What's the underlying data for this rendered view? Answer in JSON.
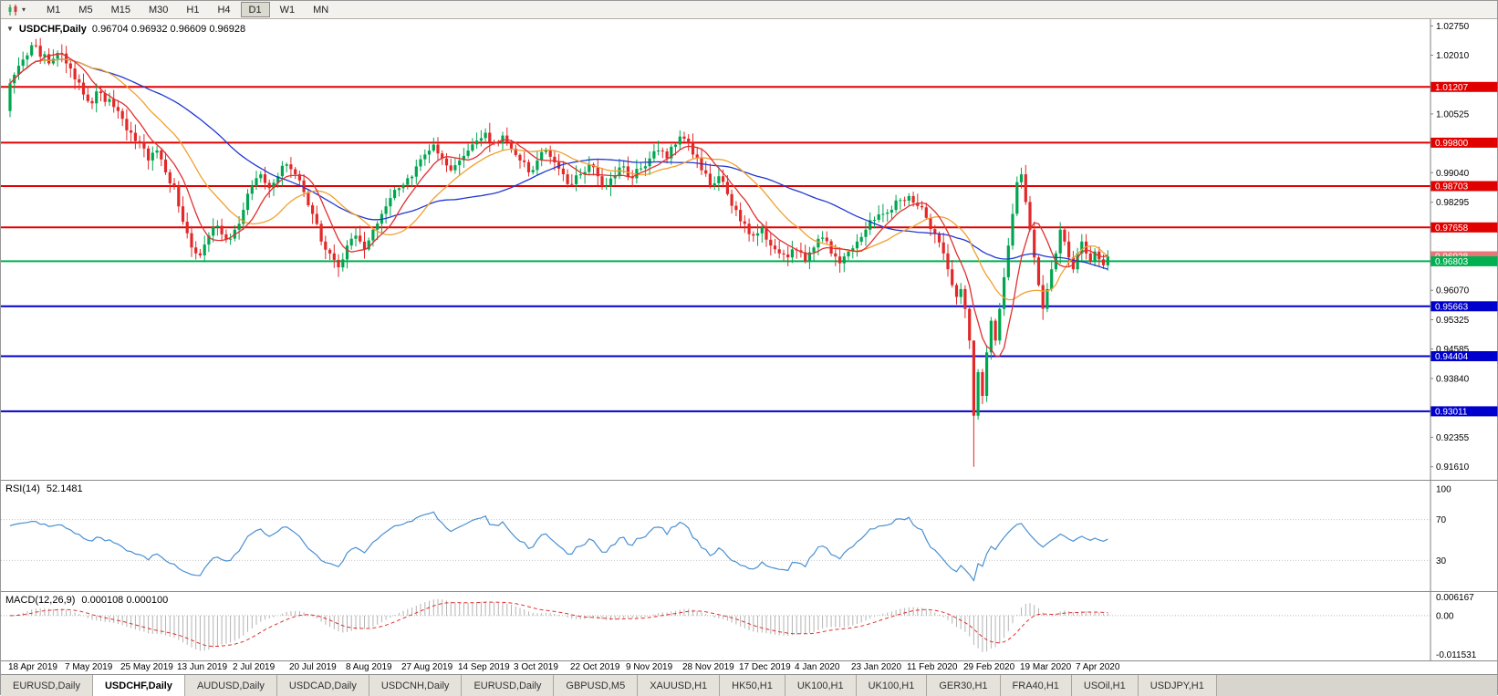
{
  "toolbar": {
    "timeframes": [
      "M1",
      "M5",
      "M15",
      "M30",
      "H1",
      "H4",
      "D1",
      "W1",
      "MN"
    ],
    "active_timeframe": "D1"
  },
  "chart": {
    "title": "USDCHF,Daily",
    "ohlc": "0.96704 0.96932 0.96609 0.96928"
  },
  "price_axis": {
    "ticks": [
      "1.02750",
      "1.02010",
      "1.01265",
      "1.00525",
      "0.99780",
      "0.99040",
      "0.98295",
      "0.97555",
      "0.96810",
      "0.96070",
      "0.95325",
      "0.94585",
      "0.93840",
      "0.93100",
      "0.92355",
      "0.91610"
    ]
  },
  "levels": [
    {
      "text": "1.01207",
      "price": 1.01207,
      "color": "#e00000",
      "kind": "resistance",
      "line": true
    },
    {
      "text": "0.99800",
      "price": 0.998,
      "color": "#e00000",
      "kind": "resistance",
      "line": true
    },
    {
      "text": "0.98703",
      "price": 0.98703,
      "color": "#e00000",
      "kind": "resistance",
      "line": true
    },
    {
      "text": "0.97658",
      "price": 0.97658,
      "color": "#e00000",
      "kind": "resistance",
      "line": true
    },
    {
      "text": "0.96928",
      "price": 0.96928,
      "color": "#e87878",
      "kind": "current-price",
      "line": false
    },
    {
      "text": "0.96803",
      "price": 0.96803,
      "color": "#00b050",
      "kind": "pivot",
      "line": true
    },
    {
      "text": "0.95663",
      "price": 0.95663,
      "color": "#0000cc",
      "kind": "support",
      "line": true
    },
    {
      "text": "0.94404",
      "price": 0.94404,
      "color": "#0000cc",
      "kind": "support",
      "line": true
    },
    {
      "text": "0.93011",
      "price": 0.93011,
      "color": "#0000cc",
      "kind": "support",
      "line": true
    }
  ],
  "rsi": {
    "label": "RSI(14)",
    "value": "52.1481",
    "axis_labels": [
      "100",
      "70",
      "30"
    ]
  },
  "macd": {
    "label": "MACD(12,26,9)",
    "values": "0.000108 0.000100",
    "axis_labels": [
      "0.006167",
      "0.00",
      "-0.011531"
    ]
  },
  "date_axis": {
    "labels": [
      "18 Apr 2019",
      "7 May 2019",
      "25 May 2019",
      "13 Jun 2019",
      "2 Jul 2019",
      "20 Jul 2019",
      "8 Aug 2019",
      "27 Aug 2019",
      "14 Sep 2019",
      "3 Oct 2019",
      "22 Oct 2019",
      "9 Nov 2019",
      "28 Nov 2019",
      "17 Dec 2019",
      "4 Jan 2020",
      "23 Jan 2020",
      "11 Feb 2020",
      "29 Feb 2020",
      "19 Mar 2020",
      "7 Apr 2020"
    ]
  },
  "tabs": [
    {
      "label": "EURUSD,Daily",
      "active": false
    },
    {
      "label": "USDCHF,Daily",
      "active": true
    },
    {
      "label": "AUDUSD,Daily",
      "active": false
    },
    {
      "label": "USDCAD,Daily",
      "active": false
    },
    {
      "label": "USDCNH,Daily",
      "active": false
    },
    {
      "label": "EURUSD,Daily",
      "active": false
    },
    {
      "label": "GBPUSD,M5",
      "active": false
    },
    {
      "label": "XAUUSD,H1",
      "active": false
    },
    {
      "label": "HK50,H1",
      "active": false
    },
    {
      "label": "UK100,H1",
      "active": false
    },
    {
      "label": "UK100,H1",
      "active": false
    },
    {
      "label": "GER30,H1",
      "active": false
    },
    {
      "label": "FRA40,H1",
      "active": false
    },
    {
      "label": "USOil,H1",
      "active": false
    },
    {
      "label": "USDJPY,H1",
      "active": false
    }
  ],
  "chart_data": {
    "type": "candlestick",
    "symbol": "USDCHF",
    "timeframe": "Daily",
    "current_ohlc": {
      "open": 0.96704,
      "high": 0.96932,
      "low": 0.96609,
      "close": 0.96928
    },
    "price_range": {
      "min": 0.9128,
      "max": 1.0292
    },
    "candle_count": 255,
    "first_open": 1.006,
    "jitter": 0.0026,
    "wick_base": 0.0004,
    "wick_rand": 0.0022,
    "seed": 20200418,
    "up_color": "#00a64f",
    "down_color": "#e22828",
    "close_anchors": [
      [
        0,
        1.013
      ],
      [
        3,
        1.019
      ],
      [
        6,
        1.0225
      ],
      [
        9,
        1.018
      ],
      [
        12,
        1.0205
      ],
      [
        15,
        1.014
      ],
      [
        18,
        1.0085
      ],
      [
        21,
        1.0105
      ],
      [
        24,
        1.007
      ],
      [
        26,
        1.004
      ],
      [
        28,
        1.0005
      ],
      [
        30,
        0.998
      ],
      [
        32,
        0.9935
      ],
      [
        34,
        0.996
      ],
      [
        36,
        0.9905
      ],
      [
        38,
        0.987
      ],
      [
        40,
        0.978
      ],
      [
        42,
        0.9715
      ],
      [
        44,
        0.9695
      ],
      [
        46,
        0.9745
      ],
      [
        48,
        0.977
      ],
      [
        50,
        0.9735
      ],
      [
        52,
        0.976
      ],
      [
        54,
        0.981
      ],
      [
        56,
        0.987
      ],
      [
        58,
        0.99
      ],
      [
        60,
        0.9865
      ],
      [
        62,
        0.9895
      ],
      [
        64,
        0.9925
      ],
      [
        66,
        0.99
      ],
      [
        68,
        0.9855
      ],
      [
        70,
        0.98
      ],
      [
        72,
        0.973
      ],
      [
        74,
        0.97
      ],
      [
        76,
        0.9665
      ],
      [
        78,
        0.972
      ],
      [
        80,
        0.9745
      ],
      [
        82,
        0.971
      ],
      [
        84,
        0.976
      ],
      [
        86,
        0.98
      ],
      [
        88,
        0.984
      ],
      [
        90,
        0.9865
      ],
      [
        92,
        0.989
      ],
      [
        94,
        0.992
      ],
      [
        96,
        0.995
      ],
      [
        98,
        0.9975
      ],
      [
        100,
        0.994
      ],
      [
        102,
        0.991
      ],
      [
        104,
        0.9935
      ],
      [
        106,
        0.996
      ],
      [
        108,
        0.9985
      ],
      [
        110,
        1.0005
      ],
      [
        112,
        0.998
      ],
      [
        114,
        0.9998
      ],
      [
        116,
        0.9965
      ],
      [
        118,
        0.9935
      ],
      [
        120,
        0.9905
      ],
      [
        122,
        0.9935
      ],
      [
        124,
        0.996
      ],
      [
        126,
        0.993
      ],
      [
        128,
        0.99
      ],
      [
        130,
        0.9875
      ],
      [
        132,
        0.99
      ],
      [
        134,
        0.9925
      ],
      [
        136,
        0.9895
      ],
      [
        138,
        0.987
      ],
      [
        140,
        0.9895
      ],
      [
        142,
        0.992
      ],
      [
        144,
        0.989
      ],
      [
        146,
        0.9915
      ],
      [
        148,
        0.994
      ],
      [
        150,
        0.996
      ],
      [
        152,
        0.994
      ],
      [
        154,
        0.9975
      ],
      [
        156,
        0.999
      ],
      [
        158,
        0.995
      ],
      [
        160,
        0.991
      ],
      [
        162,
        0.987
      ],
      [
        164,
        0.9895
      ],
      [
        166,
        0.985
      ],
      [
        168,
        0.981
      ],
      [
        170,
        0.9775
      ],
      [
        172,
        0.9745
      ],
      [
        174,
        0.9765
      ],
      [
        176,
        0.972
      ],
      [
        178,
        0.97
      ],
      [
        180,
        0.969
      ],
      [
        182,
        0.9708
      ],
      [
        184,
        0.968
      ],
      [
        186,
        0.9715
      ],
      [
        188,
        0.974
      ],
      [
        190,
        0.97
      ],
      [
        192,
        0.9675
      ],
      [
        194,
        0.9705
      ],
      [
        196,
        0.973
      ],
      [
        198,
        0.976
      ],
      [
        200,
        0.9785
      ],
      [
        202,
        0.98
      ],
      [
        204,
        0.981
      ],
      [
        206,
        0.9835
      ],
      [
        208,
        0.9845
      ],
      [
        210,
        0.982
      ],
      [
        212,
        0.979
      ],
      [
        214,
        0.975
      ],
      [
        216,
        0.97
      ],
      [
        217,
        0.966
      ],
      [
        218,
        0.962
      ],
      [
        219,
        0.959
      ],
      [
        220,
        0.961
      ],
      [
        221,
        0.956
      ],
      [
        222,
        0.948
      ],
      [
        223,
        0.929
      ],
      [
        224,
        0.94
      ],
      [
        225,
        0.934
      ],
      [
        226,
        0.945
      ],
      [
        227,
        0.953
      ],
      [
        228,
        0.948
      ],
      [
        229,
        0.956
      ],
      [
        230,
        0.964
      ],
      [
        231,
        0.972
      ],
      [
        232,
        0.98
      ],
      [
        233,
        0.988
      ],
      [
        234,
        0.99
      ],
      [
        235,
        0.983
      ],
      [
        236,
        0.976
      ],
      [
        237,
        0.969
      ],
      [
        238,
        0.962
      ],
      [
        239,
        0.956
      ],
      [
        240,
        0.961
      ],
      [
        241,
        0.966
      ],
      [
        242,
        0.97
      ],
      [
        243,
        0.976
      ],
      [
        244,
        0.973
      ],
      [
        245,
        0.969
      ],
      [
        246,
        0.966
      ],
      [
        247,
        0.97
      ],
      [
        248,
        0.973
      ],
      [
        249,
        0.97
      ],
      [
        250,
        0.968
      ],
      [
        251,
        0.9705
      ],
      [
        252,
        0.9685
      ],
      [
        253,
        0.967
      ],
      [
        254,
        0.96928
      ]
    ],
    "overrides": {
      "6": {
        "high": 1.0242
      },
      "223": {
        "low": 0.9161,
        "high": 0.947
      },
      "234": {
        "high": 0.9917
      },
      "239": {
        "low": 0.9532
      }
    },
    "moving_averages": [
      {
        "name": "slow-ma",
        "period": 45,
        "color": "#2038d0"
      },
      {
        "name": "mid-ma",
        "period": 20,
        "color": "#f0a030"
      },
      {
        "name": "fast-ma",
        "period": 8,
        "color": "#e03030"
      }
    ],
    "rsi": {
      "period": 14,
      "range_min": 0,
      "range_max": 108,
      "levels": [
        70,
        30
      ],
      "color": "#4a90d2"
    },
    "macd_cfg": {
      "fast": 12,
      "slow": 26,
      "signal": 9,
      "range_min": -0.0125,
      "range_max": 0.0066,
      "bar_color": "#b4b4b4",
      "signal_color": "#e03030"
    }
  }
}
